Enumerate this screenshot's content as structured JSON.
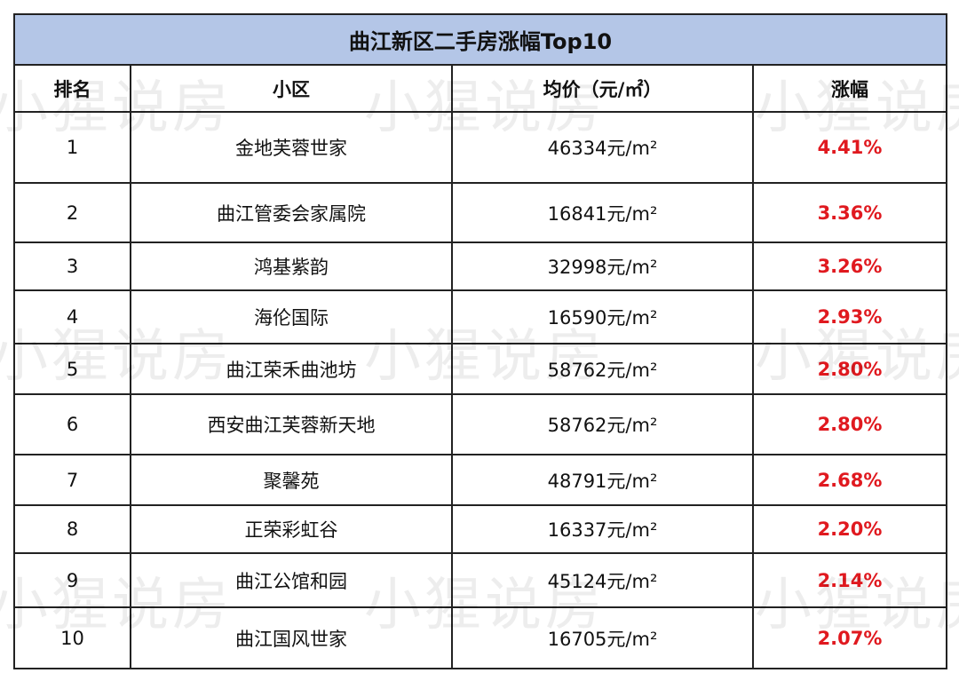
{
  "title": "曲江新区二手房涨幅Top10",
  "headers": [
    "排名",
    "小区",
    "均价（元/㎡）",
    "涨幅"
  ],
  "rows": [
    {
      "rank": "1",
      "name": "金地芙蓉世家",
      "price": "46334元/m²",
      "change": "4.41%"
    },
    {
      "rank": "2",
      "name": "曲江管委会家属院",
      "price": "16841元/m²",
      "change": "3.36%"
    },
    {
      "rank": "3",
      "name": "鸿基紫韵",
      "price": "32998元/m²",
      "change": "3.26%"
    },
    {
      "rank": "4",
      "name": "海伦国际",
      "price": "16590元/m²",
      "change": "2.93%"
    },
    {
      "rank": "5",
      "name": "曲江荣禾曲池坊",
      "price": "58762元/m²",
      "change": "2.80%"
    },
    {
      "rank": "6",
      "name": "西安曲江芙蓉新天地",
      "price": "58762元/m²",
      "change": "2.80%"
    },
    {
      "rank": "7",
      "name": "聚馨苑",
      "price": "48791元/m²",
      "change": "2.68%"
    },
    {
      "rank": "8",
      "name": "正荣彩虹谷",
      "price": "16337元/m²",
      "change": "2.20%"
    },
    {
      "rank": "9",
      "name": "曲江公馆和园",
      "price": "45124元/m²",
      "change": "2.14%"
    },
    {
      "rank": "10",
      "name": "曲江国风世家",
      "price": "16705元/m²",
      "change": "2.07%"
    }
  ],
  "watermark": "小猩说房",
  "colors": {
    "title_bg": "#b4c6e7",
    "change_text": "#e0191f"
  }
}
